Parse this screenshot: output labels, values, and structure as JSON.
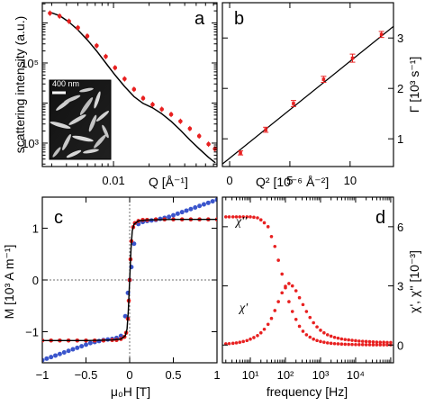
{
  "chart_data": [
    {
      "type": "line",
      "panel": "a",
      "xlabel": "Q [Å⁻¹]",
      "ylabel": "scattering intensity (a.u.)",
      "x_scale": "log",
      "y_scale": "log",
      "xlim": [
        0.0025,
        0.075
      ],
      "ylim": [
        260,
        3200000
      ],
      "x_ticks": [
        0.01
      ],
      "x_tick_labels": [
        "0.01"
      ],
      "y_ticks": [
        1000,
        100000
      ],
      "y_tick_labels": [
        "10³",
        "10⁵"
      ],
      "inset_scale_label": "400 nm",
      "series": [
        {
          "role": "data",
          "color": "#e82020",
          "x": [
            0.0029,
            0.0035,
            0.0042,
            0.005,
            0.006,
            0.0072,
            0.0086,
            0.0103,
            0.0124,
            0.0149,
            0.0178,
            0.0214,
            0.0256,
            0.0307,
            0.0368,
            0.0442,
            0.053,
            0.0636,
            0.072
          ],
          "y": [
            1750000,
            1480000,
            1100000,
            760000,
            470000,
            270000,
            145000,
            76000,
            40000,
            22000,
            13200,
            9200,
            7000,
            5200,
            3500,
            2300,
            1500,
            940,
            720
          ]
        },
        {
          "role": "fit",
          "color": "#000000",
          "x": [
            0.0029,
            0.0035,
            0.0042,
            0.005,
            0.006,
            0.0072,
            0.0086,
            0.0103,
            0.0124,
            0.0149,
            0.0178,
            0.0214,
            0.0256,
            0.0307,
            0.0368,
            0.0442,
            0.053,
            0.0636,
            0.072
          ],
          "y": [
            1850000,
            1520000,
            1050000,
            670000,
            380000,
            200000,
            100000,
            50000,
            26000,
            14500,
            9800,
            7600,
            5400,
            3500,
            2100,
            1200,
            720,
            440,
            330
          ]
        }
      ]
    },
    {
      "type": "scatter",
      "panel": "b",
      "xlabel": "Q² [10⁻⁶ Å⁻²]",
      "ylabel": "Γ [10³ s⁻¹]",
      "xlim": [
        -0.6,
        13.6
      ],
      "ylim": [
        0.45,
        3.7
      ],
      "x_ticks": [
        0,
        5,
        10
      ],
      "y_ticks": [
        1,
        2,
        3
      ],
      "series": [
        {
          "role": "data",
          "color": "#e82020",
          "x": [
            0.9,
            3.0,
            5.3,
            7.8,
            10.2,
            12.6
          ],
          "y": [
            0.72,
            1.18,
            1.7,
            2.18,
            2.6,
            3.07
          ],
          "err": [
            0.04,
            0.05,
            0.06,
            0.06,
            0.08,
            0.06
          ]
        },
        {
          "role": "fit",
          "color": "#000000",
          "x": [
            -0.6,
            15.1
          ],
          "y": [
            0.5,
            3.52
          ]
        }
      ]
    },
    {
      "type": "scatter",
      "panel": "c",
      "xlabel": "μ₀H [T]",
      "ylabel": "M [10³ A m⁻¹]",
      "xlim": [
        -1.0,
        1.0
      ],
      "ylim": [
        -1.6,
        1.6
      ],
      "x_ticks": [
        -1,
        -0.5,
        0,
        0.5,
        1
      ],
      "x_tick_labels": [
        "−1",
        "−0.5",
        "0",
        "0.5",
        "1"
      ],
      "y_ticks": [
        -1,
        0,
        1
      ],
      "y_tick_labels": [
        "−1",
        "0",
        "1"
      ],
      "series": [
        {
          "role": "data",
          "color": "#3a55cc",
          "x": [
            -1.0,
            -0.95,
            -0.9,
            -0.85,
            -0.8,
            -0.75,
            -0.7,
            -0.65,
            -0.6,
            -0.55,
            -0.5,
            -0.45,
            -0.4,
            -0.35,
            -0.3,
            -0.25,
            -0.2,
            -0.15,
            -0.1,
            -0.05,
            -0.02,
            0.0,
            0.02,
            0.05,
            0.1,
            0.15,
            0.2,
            0.25,
            0.3,
            0.35,
            0.4,
            0.45,
            0.5,
            0.55,
            0.6,
            0.65,
            0.7,
            0.75,
            0.8,
            0.85,
            0.9,
            0.95,
            1.0
          ],
          "y": [
            -1.55,
            -1.52,
            -1.49,
            -1.46,
            -1.43,
            -1.4,
            -1.37,
            -1.34,
            -1.31,
            -1.28,
            -1.25,
            -1.22,
            -1.2,
            -1.18,
            -1.16,
            -1.15,
            -1.14,
            -1.12,
            -1.08,
            -0.7,
            -0.25,
            0.0,
            0.25,
            0.7,
            1.08,
            1.12,
            1.14,
            1.15,
            1.16,
            1.18,
            1.2,
            1.22,
            1.25,
            1.28,
            1.31,
            1.34,
            1.37,
            1.4,
            1.43,
            1.46,
            1.49,
            1.52,
            1.55
          ]
        },
        {
          "role": "data",
          "color": "#e82020",
          "x": [
            -1.0,
            -0.9,
            -0.8,
            -0.7,
            -0.6,
            -0.5,
            -0.4,
            -0.3,
            -0.2,
            -0.15,
            -0.1,
            -0.06,
            -0.04,
            -0.02,
            -0.01,
            0.0,
            0.01,
            0.02,
            0.04,
            0.06,
            0.1,
            0.15,
            0.2,
            0.3,
            0.4,
            0.5,
            0.6,
            0.7,
            0.8,
            0.9,
            1.0
          ],
          "y": [
            -1.17,
            -1.17,
            -1.17,
            -1.17,
            -1.17,
            -1.17,
            -1.17,
            -1.17,
            -1.16,
            -1.16,
            -1.14,
            -1.1,
            -1.02,
            -0.75,
            -0.4,
            0.0,
            0.4,
            0.75,
            1.02,
            1.1,
            1.14,
            1.16,
            1.16,
            1.17,
            1.17,
            1.17,
            1.17,
            1.17,
            1.17,
            1.17,
            1.17
          ]
        },
        {
          "role": "fit",
          "color": "#000000",
          "x": [
            -1.0,
            -0.5,
            -0.2,
            -0.1,
            -0.05,
            -0.03,
            -0.015,
            0.0,
            0.015,
            0.03,
            0.05,
            0.1,
            0.2,
            0.5,
            1.0
          ],
          "y": [
            -1.17,
            -1.17,
            -1.16,
            -1.14,
            -1.08,
            -0.95,
            -0.6,
            0.0,
            0.6,
            0.95,
            1.08,
            1.14,
            1.16,
            1.17,
            1.17
          ]
        }
      ]
    },
    {
      "type": "scatter",
      "panel": "d",
      "xlabel": "frequency [Hz]",
      "ylabel": "χ', χ'' [10⁻³]",
      "x_scale": "log",
      "xlim": [
        1.6,
        120000
      ],
      "ylim": [
        -0.9,
        7.5
      ],
      "x_ticks": [
        10,
        100,
        1000,
        10000
      ],
      "x_tick_labels": [
        "10¹",
        "10²",
        "10³",
        "10⁴"
      ],
      "y_ticks": [
        0,
        3,
        6
      ],
      "series": [
        {
          "name": "χ''",
          "color": "#e82020",
          "x": [
            2,
            2.5,
            3.2,
            4,
            5,
            6.3,
            8,
            10,
            12.6,
            16,
            20,
            25,
            32,
            40,
            50,
            63,
            80,
            100,
            126,
            158,
            200,
            251,
            316,
            398,
            501,
            631,
            794,
            1000,
            1259,
            1585,
            1995,
            2512,
            3162,
            3981,
            5012,
            6310,
            7943,
            10000,
            12589,
            15849,
            19953,
            25119,
            31623,
            39811,
            50119,
            63096,
            79433,
            100000
          ],
          "y": [
            6.5,
            6.5,
            6.5,
            6.5,
            6.5,
            6.5,
            6.5,
            6.5,
            6.48,
            6.45,
            6.35,
            6.2,
            6.0,
            5.5,
            5.0,
            4.3,
            3.6,
            2.9,
            2.2,
            1.7,
            1.3,
            0.95,
            0.7,
            0.52,
            0.4,
            0.3,
            0.23,
            0.18,
            0.14,
            0.11,
            0.09,
            0.07,
            0.06,
            0.05,
            0.04,
            0.035,
            0.03,
            0.025,
            0.02,
            0.02,
            0.015,
            0.015,
            0.01,
            0.01,
            0.01,
            0.01,
            0.01,
            0.01
          ]
        },
        {
          "name": "χ'",
          "color": "#e82020",
          "x": [
            2,
            2.5,
            3.2,
            4,
            5,
            6.3,
            8,
            10,
            12.6,
            16,
            20,
            25,
            32,
            40,
            50,
            63,
            80,
            100,
            126,
            158,
            200,
            251,
            316,
            398,
            501,
            631,
            794,
            1000,
            1259,
            1585,
            1995,
            2512,
            3162,
            3981,
            5012,
            6310,
            7943,
            10000,
            12589,
            15849,
            19953,
            25119,
            31623,
            39811,
            50119,
            63096,
            79433,
            100000
          ],
          "y": [
            0.06,
            0.07,
            0.09,
            0.11,
            0.14,
            0.18,
            0.23,
            0.3,
            0.38,
            0.48,
            0.62,
            0.8,
            1.05,
            1.35,
            1.75,
            2.2,
            2.65,
            2.98,
            3.12,
            3.0,
            2.75,
            2.4,
            2.05,
            1.7,
            1.4,
            1.13,
            0.92,
            0.75,
            0.62,
            0.52,
            0.45,
            0.39,
            0.35,
            0.31,
            0.28,
            0.26,
            0.24,
            0.22,
            0.2,
            0.19,
            0.18,
            0.17,
            0.16,
            0.15,
            0.14,
            0.14,
            0.13,
            0.13
          ]
        }
      ]
    }
  ],
  "palette": {
    "red": "#e82020",
    "blue": "#3a55cc",
    "black": "#000000"
  }
}
